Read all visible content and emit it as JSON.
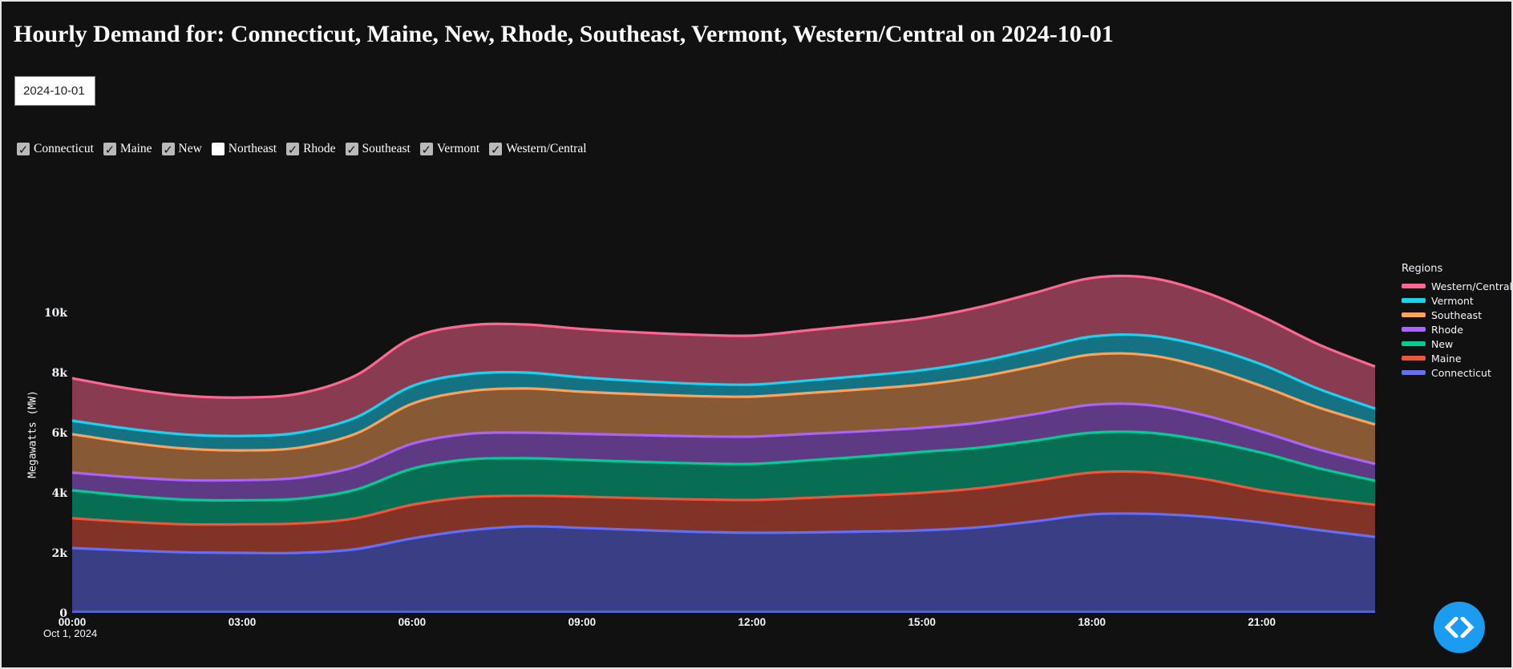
{
  "page": {
    "title": "Hourly Demand for: Connecticut, Maine, New, Rhode, Southeast, Vermont, Western/Central on 2024-10-01",
    "background_color": "#111111",
    "text_color": "#f2f5fa"
  },
  "controls": {
    "date_value": "2024-10-01",
    "regions": [
      {
        "label": "Connecticut",
        "checked": true
      },
      {
        "label": "Maine",
        "checked": true
      },
      {
        "label": "New",
        "checked": true
      },
      {
        "label": "Northeast",
        "checked": false
      },
      {
        "label": "Rhode",
        "checked": true
      },
      {
        "label": "Southeast",
        "checked": true
      },
      {
        "label": "Vermont",
        "checked": true
      },
      {
        "label": "Western/Central",
        "checked": true
      }
    ]
  },
  "chart_data": {
    "type": "area",
    "stacked": true,
    "line_shape": "spline",
    "ylabel": "Megawatts (MW)",
    "xlabel": "",
    "date_annotation": "Oct 1, 2024",
    "legend_title": "Regions",
    "legend_position": "right",
    "grid": false,
    "ylim": [
      0,
      11200
    ],
    "x_hours": [
      0,
      1,
      2,
      3,
      4,
      5,
      6,
      7,
      8,
      9,
      10,
      11,
      12,
      13,
      14,
      15,
      16,
      17,
      18,
      19,
      20,
      21,
      22,
      23
    ],
    "x_ticks": [
      {
        "hour": 0,
        "label": "00:00"
      },
      {
        "hour": 3,
        "label": "03:00"
      },
      {
        "hour": 6,
        "label": "06:00"
      },
      {
        "hour": 9,
        "label": "09:00"
      },
      {
        "hour": 12,
        "label": "12:00"
      },
      {
        "hour": 15,
        "label": "15:00"
      },
      {
        "hour": 18,
        "label": "18:00"
      },
      {
        "hour": 21,
        "label": "21:00"
      }
    ],
    "y_ticks": [
      {
        "value": 0,
        "label": "0"
      },
      {
        "value": 2000,
        "label": "2k"
      },
      {
        "value": 4000,
        "label": "4k"
      },
      {
        "value": 6000,
        "label": "6k"
      },
      {
        "value": 8000,
        "label": "8k"
      },
      {
        "value": 10000,
        "label": "10k"
      }
    ],
    "series": [
      {
        "name": "Connecticut",
        "color": "#636EFA",
        "values": [
          2160,
          2080,
          2020,
          2000,
          2000,
          2120,
          2480,
          2750,
          2880,
          2830,
          2760,
          2700,
          2670,
          2680,
          2710,
          2750,
          2850,
          3050,
          3280,
          3300,
          3200,
          3010,
          2760,
          2530
        ]
      },
      {
        "name": "Maine",
        "color": "#EF553B",
        "values": [
          990,
          950,
          930,
          950,
          980,
          1030,
          1120,
          1100,
          1020,
          1040,
          1060,
          1080,
          1090,
          1150,
          1200,
          1250,
          1300,
          1350,
          1390,
          1380,
          1250,
          1070,
          1060,
          1070
        ]
      },
      {
        "name": "New",
        "color": "#00CC96",
        "values": [
          930,
          870,
          820,
          800,
          820,
          950,
          1200,
          1260,
          1250,
          1220,
          1210,
          1200,
          1200,
          1250,
          1300,
          1360,
          1350,
          1340,
          1330,
          1320,
          1290,
          1250,
          1000,
          800
        ]
      },
      {
        "name": "Rhode",
        "color": "#AB63FA",
        "values": [
          590,
          620,
          650,
          670,
          700,
          760,
          830,
          850,
          850,
          870,
          890,
          900,
          910,
          880,
          840,
          800,
          830,
          880,
          930,
          920,
          830,
          700,
          620,
          560
        ]
      },
      {
        "name": "Southeast",
        "color": "#FFA15A",
        "values": [
          1280,
          1150,
          1050,
          990,
          1000,
          1100,
          1330,
          1420,
          1470,
          1400,
          1360,
          1340,
          1330,
          1360,
          1400,
          1440,
          1520,
          1600,
          1670,
          1660,
          1600,
          1520,
          1400,
          1310
        ]
      },
      {
        "name": "Vermont",
        "color": "#19D3F3",
        "values": [
          450,
          460,
          470,
          480,
          500,
          540,
          590,
          570,
          530,
          480,
          440,
          410,
          400,
          420,
          450,
          480,
          520,
          560,
          600,
          650,
          700,
          720,
          620,
          530
        ]
      },
      {
        "name": "Western/Central",
        "color": "#FF6692",
        "values": [
          1410,
          1340,
          1290,
          1280,
          1300,
          1400,
          1600,
          1620,
          1600,
          1610,
          1620,
          1630,
          1630,
          1670,
          1700,
          1730,
          1800,
          1880,
          1950,
          1930,
          1800,
          1600,
          1480,
          1400
        ]
      }
    ],
    "fill_opacity": 0.5,
    "baseline_color": "#5560c8"
  },
  "fab": {
    "color": "#1c9cf0",
    "icon": "chevron-left-right"
  }
}
